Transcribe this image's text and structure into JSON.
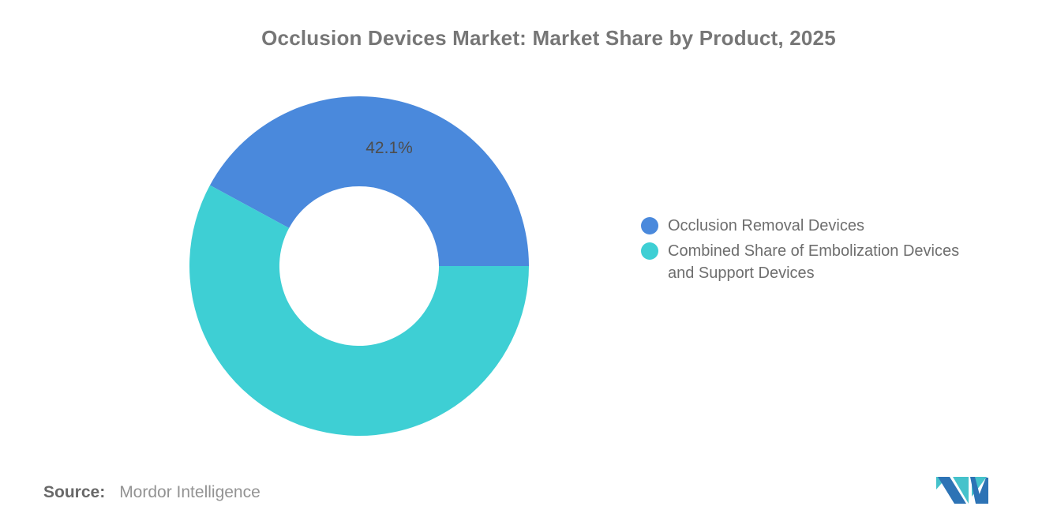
{
  "chart_data": {
    "type": "pie",
    "subtype": "donut",
    "title": "Occlusion Devices Market: Market Share by Product, 2025",
    "slices": [
      {
        "label": "Occlusion Removal Devices",
        "value": 42.1,
        "value_label": "42.1%",
        "color": "#4A89DC"
      },
      {
        "label": "Combined Share of Embolization Devices and Support Devices",
        "value": 57.9,
        "value_label": "",
        "color": "#3ECFD4"
      }
    ],
    "inner_radius_ratio": 0.47,
    "start_angle": "east",
    "direction": "counterclockwise",
    "legend_position": "right",
    "grid": false
  },
  "source": {
    "label": "Source:",
    "value": "Mordor Intelligence"
  },
  "logo": {
    "name": "mordor-intelligence-logo",
    "blue": "#2D73B5",
    "teal": "#45C2CB"
  }
}
